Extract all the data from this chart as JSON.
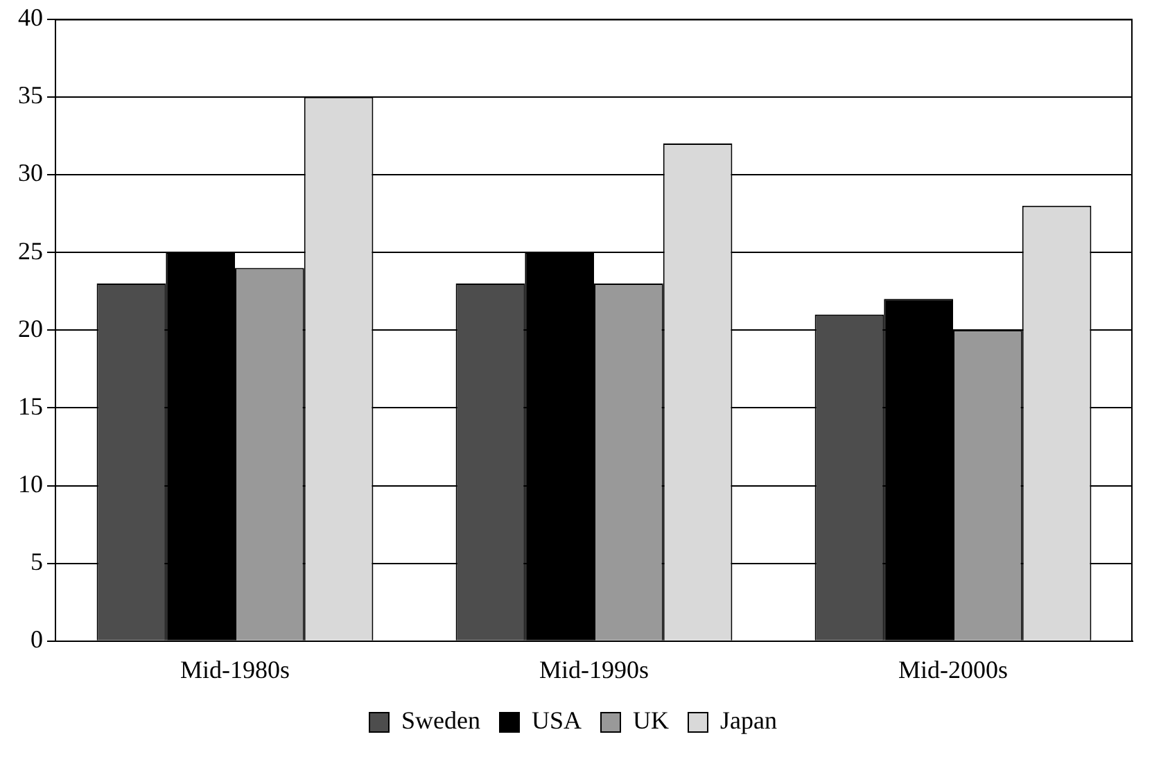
{
  "chart_data": {
    "type": "bar",
    "categories": [
      "Mid-1980s",
      "Mid-1990s",
      "Mid-2000s"
    ],
    "series": [
      {
        "name": "Sweden",
        "color": "#4d4d4d",
        "values": [
          23,
          23,
          21
        ]
      },
      {
        "name": "USA",
        "color": "#000000",
        "values": [
          25,
          25,
          22
        ]
      },
      {
        "name": "UK",
        "color": "#999999",
        "values": [
          24,
          23,
          20
        ]
      },
      {
        "name": "Japan",
        "color": "#d9d9d9",
        "values": [
          35,
          32,
          28
        ]
      }
    ],
    "ylim": [
      0,
      40
    ],
    "yticks": [
      0,
      5,
      10,
      15,
      20,
      25,
      30,
      35,
      40
    ],
    "grid": "y",
    "legend": "bottom"
  }
}
